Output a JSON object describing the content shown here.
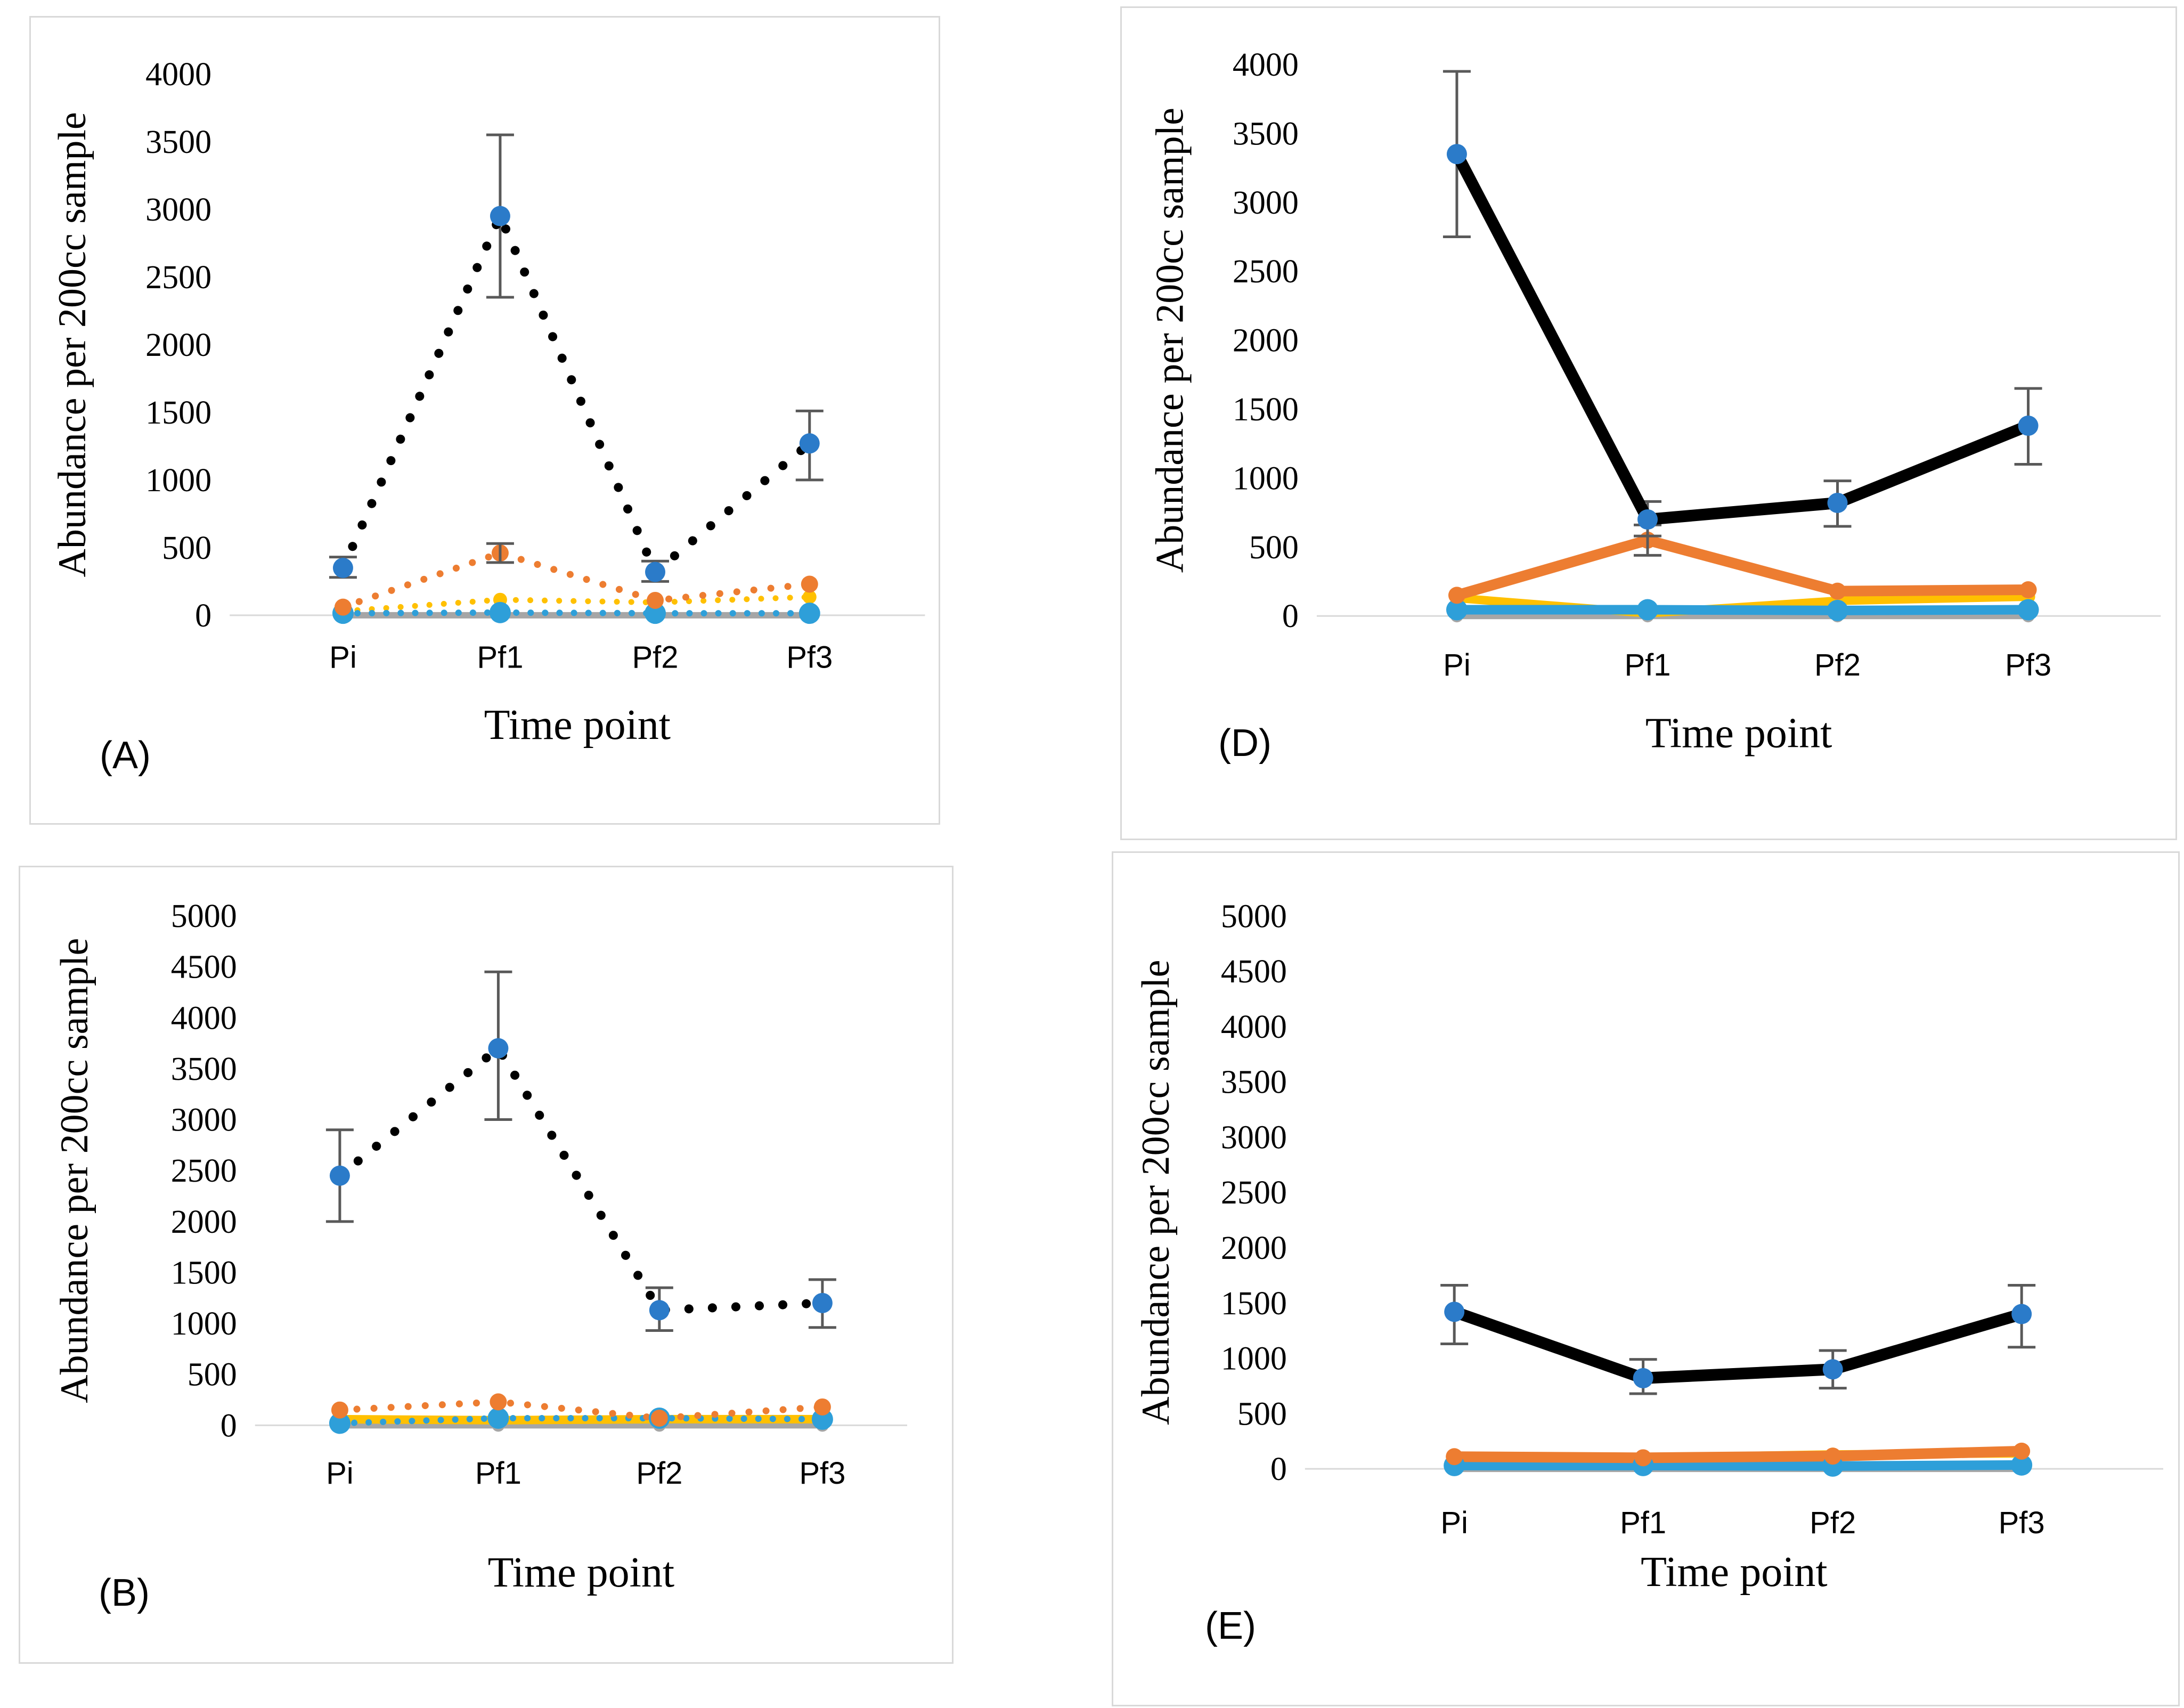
{
  "figure": {
    "background_color": "#FFFFFF",
    "panel_border_color": "#D9D9D9",
    "axis_line_color": "#D9D9D9",
    "error_bar_color": "#595959",
    "legend": "none"
  },
  "chart_data": [
    {
      "panel_label": "(A)",
      "type": "line",
      "title": "",
      "xlabel": "Time point",
      "ylabel": "Abundance per 200cc sample",
      "categories": [
        "Pi",
        "Pf1",
        "Pf2",
        "Pf3"
      ],
      "ylim": [
        0,
        4000
      ],
      "y_ticks": [
        0,
        500,
        1000,
        1500,
        2000,
        2500,
        3000,
        3500,
        4000
      ],
      "grid": "baseline-only",
      "legend_position": "none",
      "series": [
        {
          "name": "gray",
          "style": "solid",
          "line_color": "#A6A6A6",
          "marker_color": "#A6A6A6",
          "values": [
            0,
            0,
            0,
            0
          ],
          "error_bars": [
            null,
            null,
            null,
            null
          ]
        },
        {
          "name": "yellow",
          "style": "dotted",
          "line_color": "#FFC000",
          "marker_color": "#FFC000",
          "values": [
            30,
            115,
            95,
            135
          ],
          "error_bars": [
            null,
            null,
            null,
            null
          ]
        },
        {
          "name": "light-blue",
          "style": "dotted",
          "line_color": "#2E9FD9",
          "marker_color": "#2E9FD9",
          "values": [
            15,
            20,
            15,
            15
          ],
          "error_bars": [
            null,
            null,
            null,
            null
          ]
        },
        {
          "name": "orange",
          "style": "dotted",
          "line_color": "#ED7D31",
          "marker_color": "#ED7D31",
          "values": [
            60,
            460,
            110,
            230
          ],
          "error_bars": [
            null,
            [
              390,
              530
            ],
            null,
            null
          ]
        },
        {
          "name": "black",
          "style": "dotted",
          "line_color": "#000000",
          "marker_color": "#2B7BC9",
          "values": [
            350,
            2950,
            320,
            1270
          ],
          "error_bars": [
            [
              280,
              430
            ],
            [
              2350,
              3550
            ],
            [
              250,
              400
            ],
            [
              1000,
              1510
            ]
          ]
        }
      ]
    },
    {
      "panel_label": "(B)",
      "type": "line",
      "title": "",
      "xlabel": "Time point",
      "ylabel": "Abundance per 200cc sample",
      "categories": [
        "Pi",
        "Pf1",
        "Pf2",
        "Pf3"
      ],
      "ylim": [
        0,
        5000
      ],
      "y_ticks": [
        0,
        500,
        1000,
        1500,
        2000,
        2500,
        3000,
        3500,
        4000,
        4500,
        5000
      ],
      "grid": "baseline-only",
      "legend_position": "none",
      "series": [
        {
          "name": "gray",
          "style": "solid",
          "line_color": "#A6A6A6",
          "marker_color": "#A6A6A6",
          "values": [
            0,
            0,
            0,
            0
          ],
          "error_bars": [
            null,
            null,
            null,
            null
          ]
        },
        {
          "name": "yellow",
          "style": "solid",
          "line_color": "#FFC000",
          "marker_color": "#FFC000",
          "values": [
            60,
            50,
            60,
            60
          ],
          "error_bars": [
            null,
            null,
            null,
            null
          ]
        },
        {
          "name": "light-blue",
          "style": "dotted",
          "line_color": "#2E9FD9",
          "marker_color": "#2E9FD9",
          "values": [
            20,
            70,
            70,
            60
          ],
          "error_bars": [
            null,
            null,
            null,
            null
          ]
        },
        {
          "name": "orange",
          "style": "dotted",
          "line_color": "#ED7D31",
          "marker_color": "#ED7D31",
          "values": [
            150,
            230,
            70,
            180
          ],
          "error_bars": [
            null,
            null,
            null,
            null
          ]
        },
        {
          "name": "black",
          "style": "dotted",
          "line_color": "#000000",
          "marker_color": "#2B7BC9",
          "values": [
            2450,
            3700,
            1130,
            1200
          ],
          "error_bars": [
            [
              2000,
              2900
            ],
            [
              3000,
              4450
            ],
            [
              930,
              1350
            ],
            [
              960,
              1430
            ]
          ]
        }
      ]
    },
    {
      "panel_label": "(D)",
      "type": "line",
      "title": "",
      "xlabel": "Time point",
      "ylabel": "Abundance per 200cc sample",
      "categories": [
        "Pi",
        "Pf1",
        "Pf2",
        "Pf3"
      ],
      "ylim": [
        0,
        4000
      ],
      "y_ticks": [
        0,
        500,
        1000,
        1500,
        2000,
        2500,
        3000,
        3500,
        4000
      ],
      "grid": "baseline-only",
      "legend_position": "none",
      "series": [
        {
          "name": "gray",
          "style": "solid",
          "line_color": "#A6A6A6",
          "marker_color": "#A6A6A6",
          "values": [
            0,
            0,
            0,
            0
          ],
          "error_bars": [
            null,
            null,
            null,
            null
          ]
        },
        {
          "name": "yellow",
          "style": "solid",
          "line_color": "#FFC000",
          "marker_color": "#FFC000",
          "values": [
            130,
            20,
            110,
            140
          ],
          "error_bars": [
            null,
            null,
            null,
            null
          ]
        },
        {
          "name": "light-blue",
          "style": "solid",
          "line_color": "#2E9FD9",
          "marker_color": "#2E9FD9",
          "values": [
            45,
            45,
            40,
            45
          ],
          "error_bars": [
            null,
            null,
            null,
            null
          ]
        },
        {
          "name": "orange",
          "style": "solid",
          "line_color": "#ED7D31",
          "marker_color": "#ED7D31",
          "values": [
            150,
            550,
            180,
            190
          ],
          "error_bars": [
            null,
            [
              440,
              660
            ],
            null,
            null
          ]
        },
        {
          "name": "black",
          "style": "solid",
          "line_color": "#000000",
          "marker_color": "#2B7BC9",
          "values": [
            3350,
            700,
            820,
            1380
          ],
          "error_bars": [
            [
              2750,
              3950
            ],
            [
              580,
              830
            ],
            [
              650,
              980
            ],
            [
              1100,
              1650
            ]
          ]
        }
      ]
    },
    {
      "panel_label": "(E)",
      "type": "line",
      "title": "",
      "xlabel": "Time point",
      "ylabel": "Abundance per 200cc sample",
      "categories": [
        "Pi",
        "Pf1",
        "Pf2",
        "Pf3"
      ],
      "ylim": [
        0,
        5000
      ],
      "y_ticks": [
        0,
        500,
        1000,
        1500,
        2000,
        2500,
        3000,
        3500,
        4000,
        4500,
        5000
      ],
      "grid": "baseline-only",
      "legend_position": "none",
      "series": [
        {
          "name": "gray",
          "style": "solid",
          "line_color": "#A6A6A6",
          "marker_color": "#A6A6A6",
          "values": [
            0,
            0,
            0,
            0
          ],
          "error_bars": [
            null,
            null,
            null,
            null
          ]
        },
        {
          "name": "yellow",
          "style": "solid",
          "line_color": "#FFC000",
          "marker_color": "#FFC000",
          "values": [
            85,
            100,
            130,
            140
          ],
          "error_bars": [
            null,
            null,
            null,
            null
          ]
        },
        {
          "name": "light-blue",
          "style": "solid",
          "line_color": "#2E9FD9",
          "marker_color": "#2E9FD9",
          "values": [
            30,
            30,
            25,
            35
          ],
          "error_bars": [
            null,
            null,
            null,
            null
          ]
        },
        {
          "name": "orange",
          "style": "solid",
          "line_color": "#ED7D31",
          "marker_color": "#ED7D31",
          "values": [
            110,
            100,
            115,
            160
          ],
          "error_bars": [
            null,
            null,
            null,
            null
          ]
        },
        {
          "name": "black",
          "style": "solid",
          "line_color": "#000000",
          "marker_color": "#2B7BC9",
          "values": [
            1420,
            820,
            900,
            1400
          ],
          "error_bars": [
            [
              1130,
              1660
            ],
            [
              680,
              990
            ],
            [
              730,
              1070
            ],
            [
              1100,
              1660
            ]
          ]
        }
      ]
    }
  ]
}
